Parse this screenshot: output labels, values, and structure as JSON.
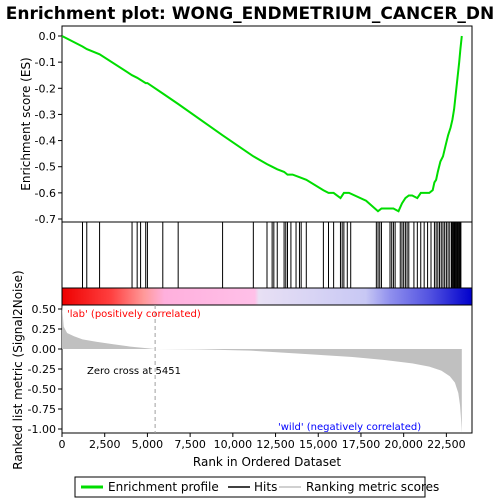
{
  "chart_data": {
    "type": "line",
    "title": "Enrichment plot: WONG_ENDMETRIUM_CANCER_DN",
    "xlabel": "Rank in Ordered Dataset",
    "ylabel_top": "Enrichment score (ES)",
    "ylabel_bottom": "Ranked list metric (Signal2Noise)",
    "x_ticks": [
      0,
      2500,
      5000,
      7500,
      10000,
      12500,
      15000,
      17500,
      20000,
      22500
    ],
    "x_tick_labels": [
      "0",
      "2,500",
      "5,000",
      "7,500",
      "10,000",
      "12,500",
      "15,000",
      "17,500",
      "20,000",
      "22,500"
    ],
    "xlim": [
      0,
      24000
    ],
    "es_ylim": [
      -0.7,
      0.02
    ],
    "es_yticks": [
      0.0,
      -0.1,
      -0.2,
      -0.3,
      -0.4,
      -0.5,
      -0.6,
      -0.7
    ],
    "es_ytick_labels": [
      "0.0",
      "-0.1",
      "-0.2",
      "-0.3",
      "-0.4",
      "-0.5",
      "-0.6",
      "-0.7"
    ],
    "metric_ylim": [
      -1.05,
      0.55
    ],
    "metric_yticks": [
      0.5,
      0.25,
      0.0,
      -0.25,
      -0.5,
      -0.75,
      -1.0
    ],
    "metric_ytick_labels": [
      "0.50",
      "0.25",
      "0.00",
      "-0.25",
      "-0.50",
      "-0.75",
      "-1.00"
    ],
    "total_genes": 23400,
    "series": [
      {
        "name": "Enrichment profile",
        "color": "#00dd00",
        "x": [
          0,
          1200,
          1450,
          2200,
          4100,
          4400,
          4900,
          5000,
          5900,
          6800,
          9400,
          11200,
          12000,
          12300,
          12600,
          13000,
          13200,
          13500,
          13900,
          14300,
          15300,
          15600,
          15900,
          16300,
          16500,
          16800,
          17800,
          18500,
          18700,
          18900,
          19200,
          19400,
          19700,
          19900,
          20100,
          20300,
          20500,
          20800,
          21000,
          21200,
          21500,
          21700,
          21800,
          21900,
          22000,
          22150,
          22300,
          22450,
          22600,
          22750,
          22850,
          22950,
          23050,
          23150,
          23250,
          23320,
          23400
        ],
        "y": [
          0.0,
          -0.04,
          -0.05,
          -0.07,
          -0.15,
          -0.16,
          -0.18,
          -0.18,
          -0.22,
          -0.26,
          -0.38,
          -0.46,
          -0.49,
          -0.5,
          -0.51,
          -0.52,
          -0.53,
          -0.53,
          -0.54,
          -0.55,
          -0.59,
          -0.6,
          -0.6,
          -0.62,
          -0.6,
          -0.6,
          -0.63,
          -0.67,
          -0.66,
          -0.66,
          -0.66,
          -0.66,
          -0.67,
          -0.64,
          -0.62,
          -0.61,
          -0.61,
          -0.62,
          -0.6,
          -0.6,
          -0.6,
          -0.59,
          -0.56,
          -0.55,
          -0.52,
          -0.48,
          -0.46,
          -0.42,
          -0.38,
          -0.35,
          -0.32,
          -0.28,
          -0.22,
          -0.16,
          -0.1,
          -0.05,
          0.0
        ]
      },
      {
        "name": "Hits",
        "color": "#000000",
        "x": [
          1200,
          1450,
          2200,
          4100,
          4400,
          4600,
          4900,
          5000,
          5900,
          6800,
          9400,
          11200,
          12000,
          12300,
          12400,
          12600,
          13000,
          13100,
          13200,
          13400,
          13700,
          13900,
          14000,
          14300,
          15300,
          15600,
          15900,
          16300,
          16400,
          16500,
          16700,
          16900,
          18400,
          18500,
          18600,
          18700,
          19200,
          19300,
          19400,
          19500,
          19800,
          19900,
          20000,
          20100,
          20200,
          20300,
          20600,
          20800,
          21000,
          21200,
          21400,
          21600,
          21800,
          21900,
          22000,
          22100,
          22200,
          22300,
          22400,
          22500,
          22600,
          22700,
          22800,
          22850,
          22900,
          22950,
          23000,
          23050,
          23100,
          23150,
          23200,
          23250,
          23300,
          23350
        ]
      },
      {
        "name": "Ranking metric scores",
        "color": "#c0c0c0",
        "x": [
          0,
          100,
          300,
          700,
          1200,
          2000,
          3000,
          4000,
          5000,
          5451,
          8000,
          11000,
          14000,
          17000,
          19000,
          20500,
          21500,
          22200,
          22700,
          23000,
          23200,
          23300,
          23350,
          23400
        ],
        "y": [
          0.55,
          0.28,
          0.2,
          0.16,
          0.12,
          0.09,
          0.06,
          0.03,
          0.01,
          0.0,
          -0.005,
          -0.02,
          -0.06,
          -0.1,
          -0.14,
          -0.18,
          -0.22,
          -0.27,
          -0.34,
          -0.42,
          -0.55,
          -0.7,
          -0.85,
          -1.05
        ]
      }
    ],
    "annotations": {
      "positive": "'lab' (positively correlated)",
      "negative": "'wild' (negatively correlated)",
      "zero_cross": "Zero cross at 5451",
      "zero_cross_x": 5451
    },
    "legend": {
      "placement": "bottom",
      "items": [
        {
          "label": "Enrichment profile",
          "color": "#00dd00"
        },
        {
          "label": "Hits",
          "color": "#000000"
        },
        {
          "label": "Ranking metric scores",
          "color": "#c0c0c0"
        }
      ]
    },
    "colors": {
      "positive_bar": "#ff0000",
      "negative_bar": "#0000ff",
      "positive_annotation": "#ff0000",
      "negative_annotation": "#0000ff"
    }
  }
}
